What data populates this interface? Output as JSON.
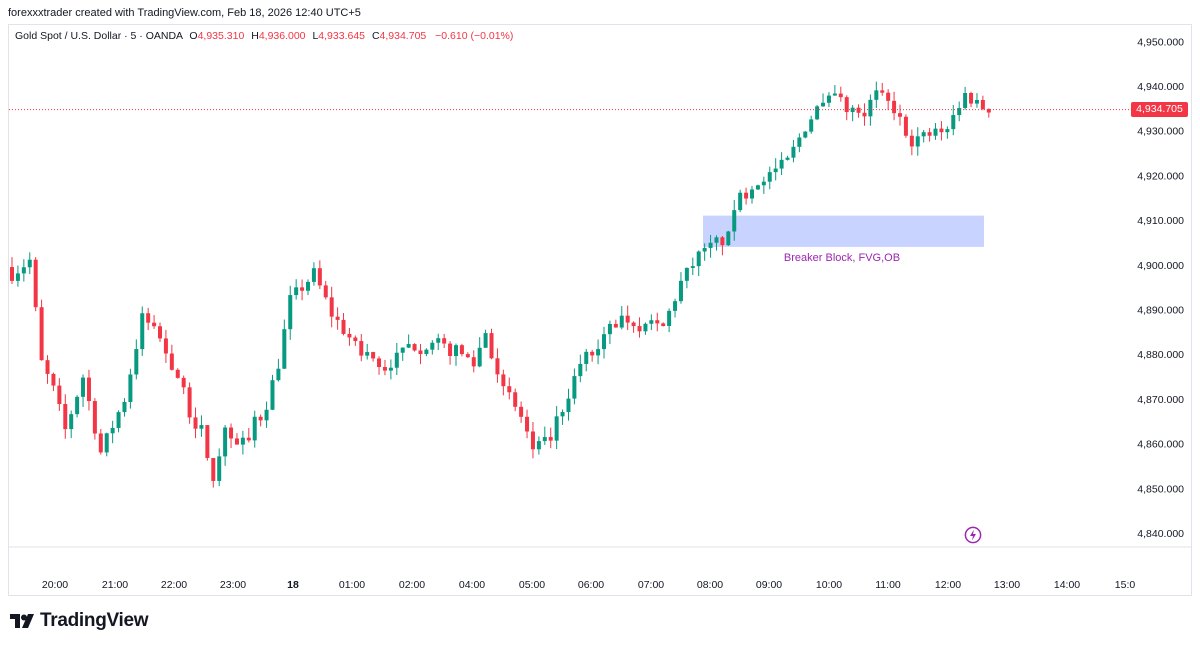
{
  "credit": "forexxxtrader created with TradingView.com, Feb 18, 2026 12:40 UTC+5",
  "legend": {
    "symbol": "Gold Spot / U.S. Dollar · 5 · OANDA",
    "o_label": "O",
    "o_value": "4,935.310",
    "h_label": "H",
    "h_value": "4,936.000",
    "l_label": "L",
    "l_value": "4,933.645",
    "c_label": "C",
    "c_value": "4,934.705",
    "change": "−0.610 (−0.01%)"
  },
  "last_price": "4,934.705",
  "brand": "TradingView",
  "colors": {
    "up": "#089981",
    "down": "#f23645",
    "zone": "#c9d3ff",
    "annotation": "#9c27b0"
  },
  "chart_data": {
    "type": "candlestick",
    "timeframe": "5m",
    "y_axis": {
      "ticks": [
        "4,950.000",
        "4,940.000",
        "4,930.000",
        "4,920.000",
        "4,910.000",
        "4,900.000",
        "4,890.000",
        "4,880.000",
        "4,870.000",
        "4,860.000",
        "4,850.000",
        "4,840.000"
      ],
      "range": [
        4836,
        4956
      ]
    },
    "x_axis": {
      "ticks": [
        "20:00",
        "21:00",
        "22:00",
        "23:00",
        "18",
        "01:00",
        "02:00",
        "04:00",
        "05:00",
        "06:00",
        "07:00",
        "08:00",
        "09:00",
        "10:00",
        "11:00",
        "12:00",
        "13:00",
        "14:00",
        "15:0"
      ]
    },
    "last_price": 4934.705,
    "zone": {
      "label": "Breaker Block, FVG,OB",
      "top": 4911,
      "bottom": 4904,
      "start": "08:00",
      "end": "12:40"
    },
    "anchors": [
      {
        "i": 0,
        "p": 4898
      },
      {
        "i": 3,
        "p": 4901
      },
      {
        "i": 5,
        "p": 4878
      },
      {
        "i": 7,
        "p": 4872
      },
      {
        "i": 9,
        "p": 4863
      },
      {
        "i": 12,
        "p": 4875
      },
      {
        "i": 15,
        "p": 4858
      },
      {
        "i": 19,
        "p": 4870
      },
      {
        "i": 22,
        "p": 4888
      },
      {
        "i": 24,
        "p": 4886
      },
      {
        "i": 28,
        "p": 4875
      },
      {
        "i": 30,
        "p": 4867
      },
      {
        "i": 32,
        "p": 4862
      },
      {
        "i": 34,
        "p": 4853
      },
      {
        "i": 36,
        "p": 4863
      },
      {
        "i": 39,
        "p": 4860
      },
      {
        "i": 43,
        "p": 4869
      },
      {
        "i": 45,
        "p": 4878
      },
      {
        "i": 47,
        "p": 4892
      },
      {
        "i": 51,
        "p": 4898
      },
      {
        "i": 54,
        "p": 4889
      },
      {
        "i": 58,
        "p": 4882
      },
      {
        "i": 62,
        "p": 4877
      },
      {
        "i": 65,
        "p": 4879
      },
      {
        "i": 68,
        "p": 4882
      },
      {
        "i": 72,
        "p": 4882
      },
      {
        "i": 76,
        "p": 4880
      },
      {
        "i": 78,
        "p": 4878
      },
      {
        "i": 80,
        "p": 4885
      },
      {
        "i": 83,
        "p": 4872
      },
      {
        "i": 86,
        "p": 4866
      },
      {
        "i": 88,
        "p": 4858
      },
      {
        "i": 90,
        "p": 4860
      },
      {
        "i": 93,
        "p": 4868
      },
      {
        "i": 96,
        "p": 4878
      },
      {
        "i": 99,
        "p": 4882
      },
      {
        "i": 101,
        "p": 4888
      },
      {
        "i": 104,
        "p": 4888
      },
      {
        "i": 107,
        "p": 4886
      },
      {
        "i": 110,
        "p": 4886
      },
      {
        "i": 113,
        "p": 4896
      },
      {
        "i": 116,
        "p": 4902
      },
      {
        "i": 119,
        "p": 4905
      },
      {
        "i": 121,
        "p": 4906
      },
      {
        "i": 122,
        "p": 4913
      },
      {
        "i": 125,
        "p": 4918
      },
      {
        "i": 128,
        "p": 4920
      },
      {
        "i": 131,
        "p": 4923
      },
      {
        "i": 134,
        "p": 4931
      },
      {
        "i": 137,
        "p": 4937
      },
      {
        "i": 140,
        "p": 4937
      },
      {
        "i": 143,
        "p": 4933
      },
      {
        "i": 146,
        "p": 4938
      },
      {
        "i": 149,
        "p": 4935
      },
      {
        "i": 152,
        "p": 4928
      },
      {
        "i": 155,
        "p": 4929
      },
      {
        "i": 158,
        "p": 4931
      },
      {
        "i": 161,
        "p": 4938
      },
      {
        "i": 163,
        "p": 4936
      },
      {
        "i": 165,
        "p": 4934.705
      }
    ]
  }
}
